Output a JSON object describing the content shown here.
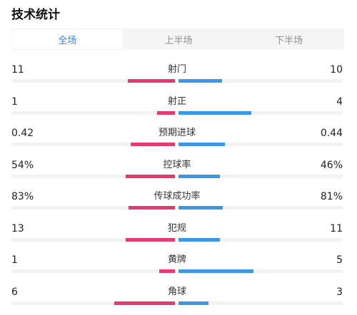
{
  "title": "技术统计",
  "tabs": [
    {
      "label": "全场",
      "active": true
    },
    {
      "label": "上半场",
      "active": false
    },
    {
      "label": "下半场",
      "active": false
    }
  ],
  "colors": {
    "home": "#e63a6e",
    "away": "#3d97e6",
    "active_tab": "#2f7fe6"
  },
  "stats": [
    {
      "label": "射门",
      "home": "11",
      "away": "10",
      "home_share": 0.52,
      "away_share": 0.48
    },
    {
      "label": "射正",
      "home": "1",
      "away": "4",
      "home_share": 0.2,
      "away_share": 0.8
    },
    {
      "label": "预期进球",
      "home": "0.42",
      "away": "0.44",
      "home_share": 0.49,
      "away_share": 0.51
    },
    {
      "label": "控球率",
      "home": "54%",
      "away": "46%",
      "home_share": 0.54,
      "away_share": 0.46
    },
    {
      "label": "传球成功率",
      "home": "83%",
      "away": "81%",
      "home_share": 0.51,
      "away_share": 0.49
    },
    {
      "label": "犯规",
      "home": "13",
      "away": "11",
      "home_share": 0.54,
      "away_share": 0.46
    },
    {
      "label": "黄牌",
      "home": "1",
      "away": "5",
      "home_share": 0.17,
      "away_share": 0.83
    },
    {
      "label": "角球",
      "home": "6",
      "away": "3",
      "home_share": 0.67,
      "away_share": 0.33
    }
  ]
}
